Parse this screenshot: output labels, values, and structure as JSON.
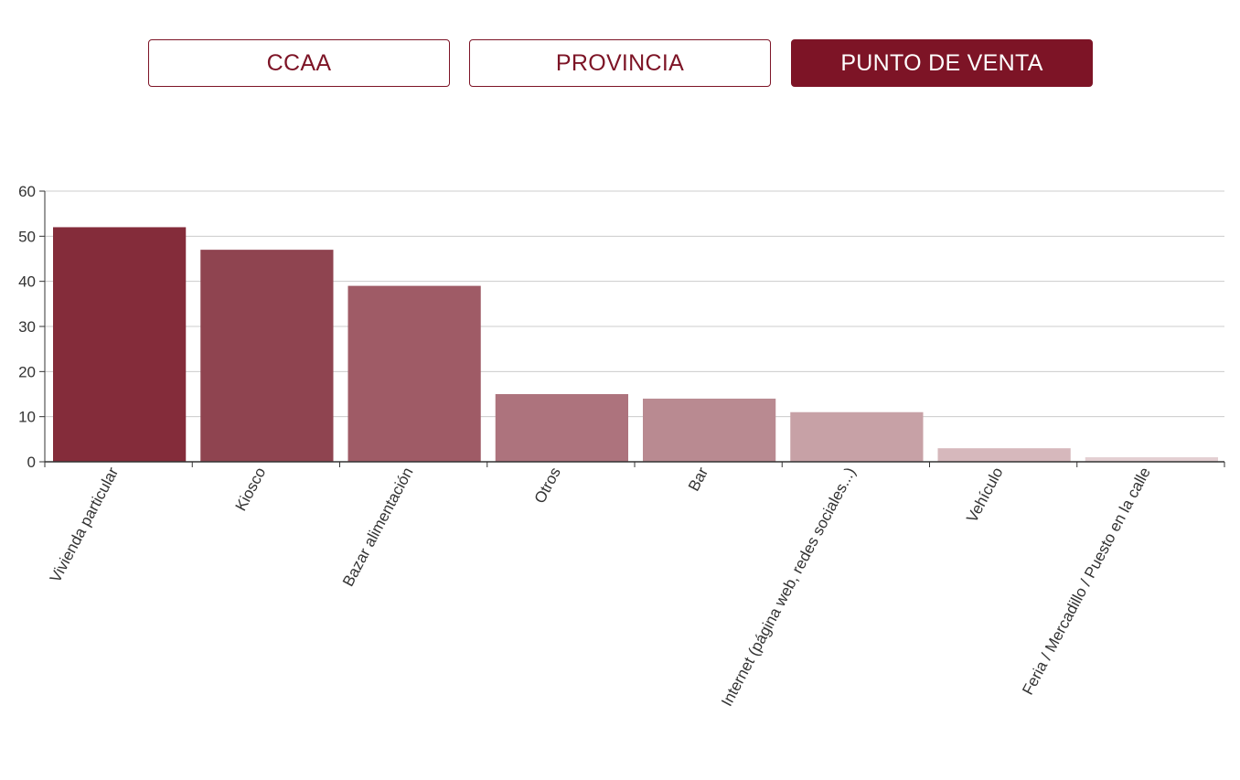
{
  "tabs": [
    {
      "label": "CCAA",
      "active": false
    },
    {
      "label": "PROVINCIA",
      "active": false
    },
    {
      "label": "PUNTO DE VENTA",
      "active": true
    }
  ],
  "colors": {
    "brand": "#7d1426",
    "bars": [
      "#842c3a",
      "#8f4450",
      "#9f5b66",
      "#ad737d",
      "#b98a91",
      "#c7a1a6",
      "#d6b8bc",
      "#e3cfd2"
    ],
    "gridline": "#cccccc",
    "axis": "#333333"
  },
  "chart_data": {
    "type": "bar",
    "categories": [
      "Vivienda particular",
      "Kiosco",
      "Bazar alimentación",
      "Otros",
      "Bar",
      "Internet (página web, redes sociales...)",
      "Vehículo",
      "Feria / Mercadillo / Puesto en la calle"
    ],
    "values": [
      52,
      47,
      39,
      15,
      14,
      11,
      3,
      1
    ],
    "ylim": [
      0,
      60
    ],
    "yticks": [
      0,
      10,
      20,
      30,
      40,
      50,
      60
    ],
    "grid": true,
    "title": "",
    "xlabel": "",
    "ylabel": ""
  }
}
